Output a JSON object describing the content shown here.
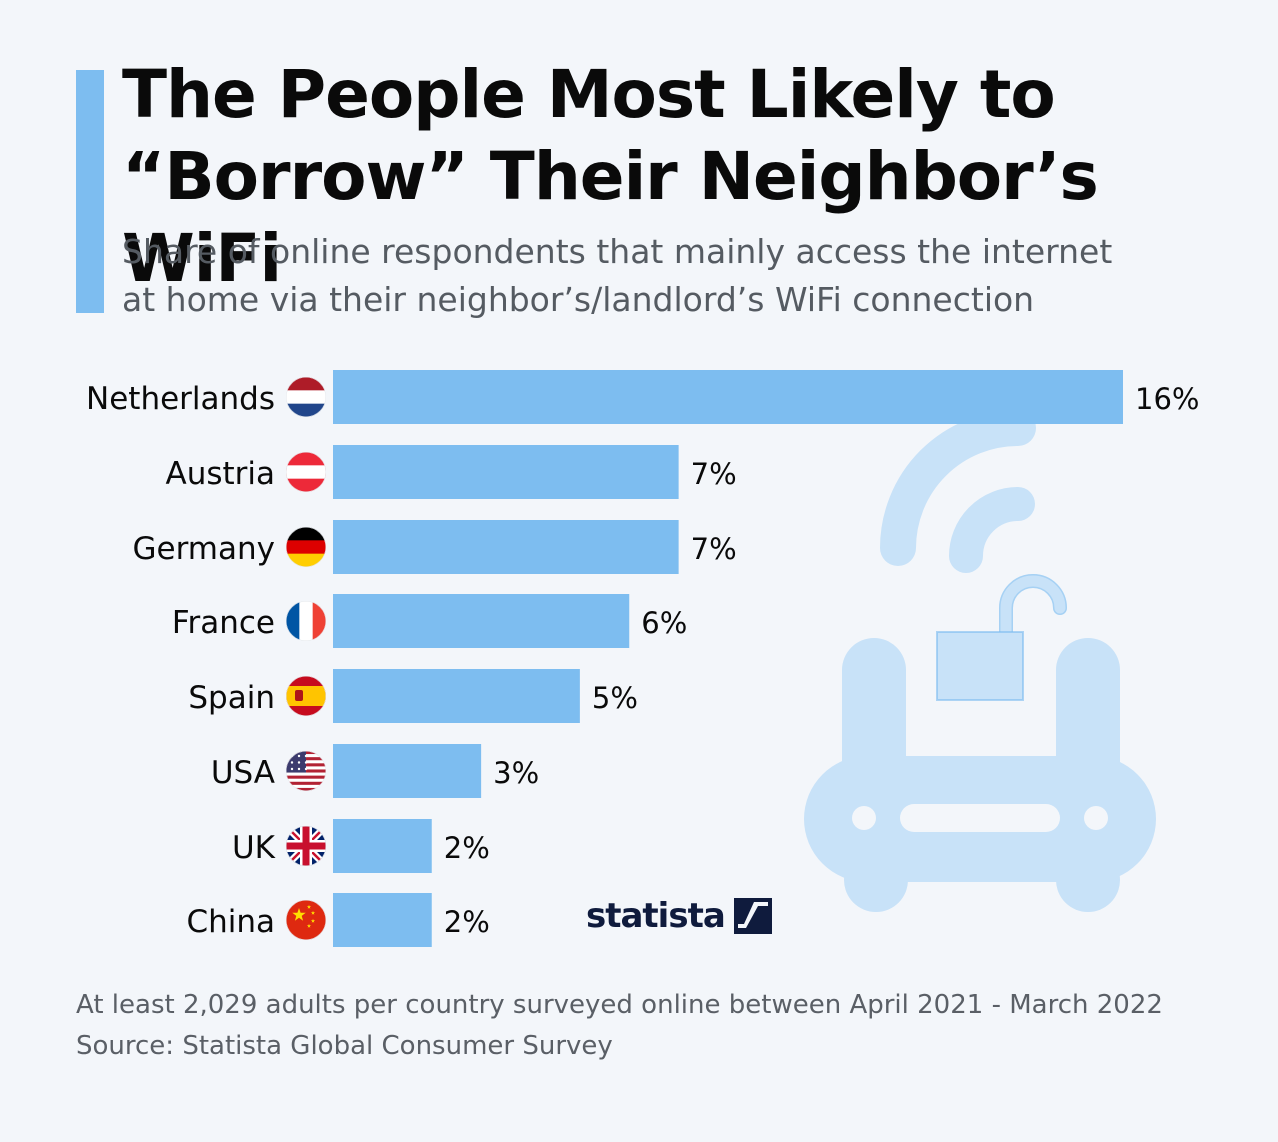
{
  "header": {
    "title_line1": "The People Most Likely to",
    "title_line2": "“Borrow” Their Neighbor’s WiFi",
    "subtitle_line1": "Share of online respondents that mainly access the internet",
    "subtitle_line2": "at home via their neighbor’s/landlord’s WiFi connection"
  },
  "chart_data": {
    "type": "bar",
    "orientation": "horizontal",
    "title": "The People Most Likely to “Borrow” Their Neighbor’s WiFi",
    "subtitle": "Share of online respondents that mainly access the internet at home via their neighbor’s/landlord’s WiFi connection",
    "categories": [
      "Netherlands",
      "Austria",
      "Germany",
      "France",
      "Spain",
      "USA",
      "UK",
      "China"
    ],
    "values": [
      16,
      7,
      7,
      6,
      5,
      3,
      2,
      2
    ],
    "value_labels": [
      "16%",
      "7%",
      "7%",
      "6%",
      "5%",
      "3%",
      "2%",
      "2%"
    ],
    "flags": [
      "netherlands-flag",
      "austria-flag",
      "germany-flag",
      "france-flag",
      "spain-flag",
      "usa-flag",
      "uk-flag",
      "china-flag"
    ],
    "unit": "%",
    "xlim": [
      0,
      16
    ],
    "grid": false,
    "bar_color": "#7dbdf0"
  },
  "illustration": {
    "icon": "wifi-router-unlocked-icon",
    "color": "#c8e2f8"
  },
  "branding": {
    "logo_text": "statista"
  },
  "footer": {
    "note": "At least 2,029 adults per country surveyed online between April 2021 - March 2022",
    "source": "Source: Statista Global Consumer Survey"
  },
  "colors": {
    "accent": "#7dbdf0",
    "background": "#f3f6fa",
    "title": "#0a0a0a",
    "text": "#555b62",
    "brand": "#0f1b3d"
  }
}
